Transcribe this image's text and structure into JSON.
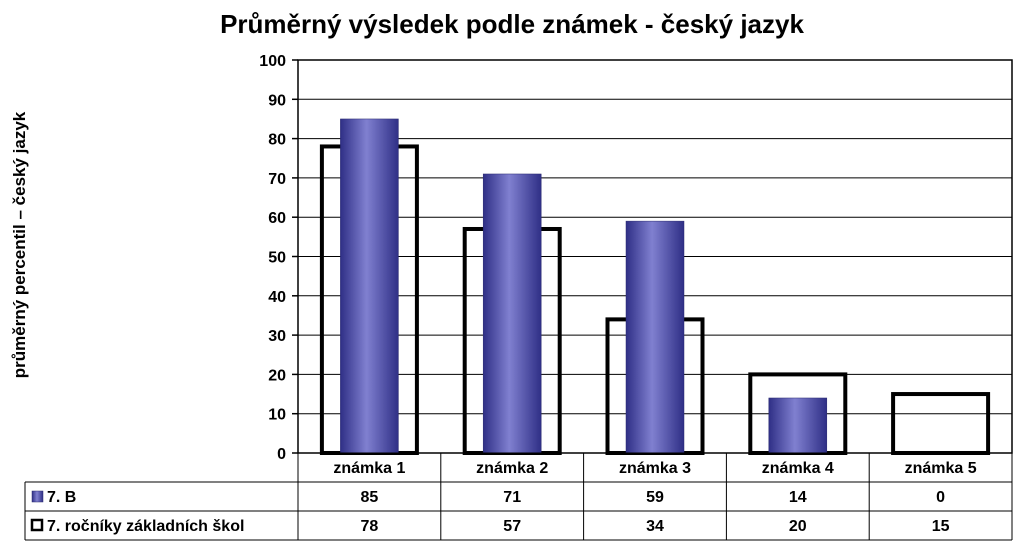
{
  "chart_data": {
    "type": "bar",
    "title": "Průměrný výsledek podle známek - český jazyk",
    "ylabel": "průměrný percentil – český jazyk",
    "xlabel": "",
    "ylim": [
      0,
      100
    ],
    "yticks": [
      0,
      10,
      20,
      30,
      40,
      50,
      60,
      70,
      80,
      90,
      100
    ],
    "categories": [
      "známka 1",
      "známka 2",
      "známka 3",
      "známka 4",
      "známka 5"
    ],
    "grid": true,
    "legend": "data-table",
    "series": [
      {
        "name": "7. B",
        "values": [
          85,
          71,
          59,
          14,
          0
        ],
        "style": "filled",
        "color": "#4a4ab0"
      },
      {
        "name": "7. ročníky základních škol",
        "values": [
          78,
          57,
          34,
          20,
          15
        ],
        "style": "outline",
        "color": "#000000"
      }
    ]
  }
}
